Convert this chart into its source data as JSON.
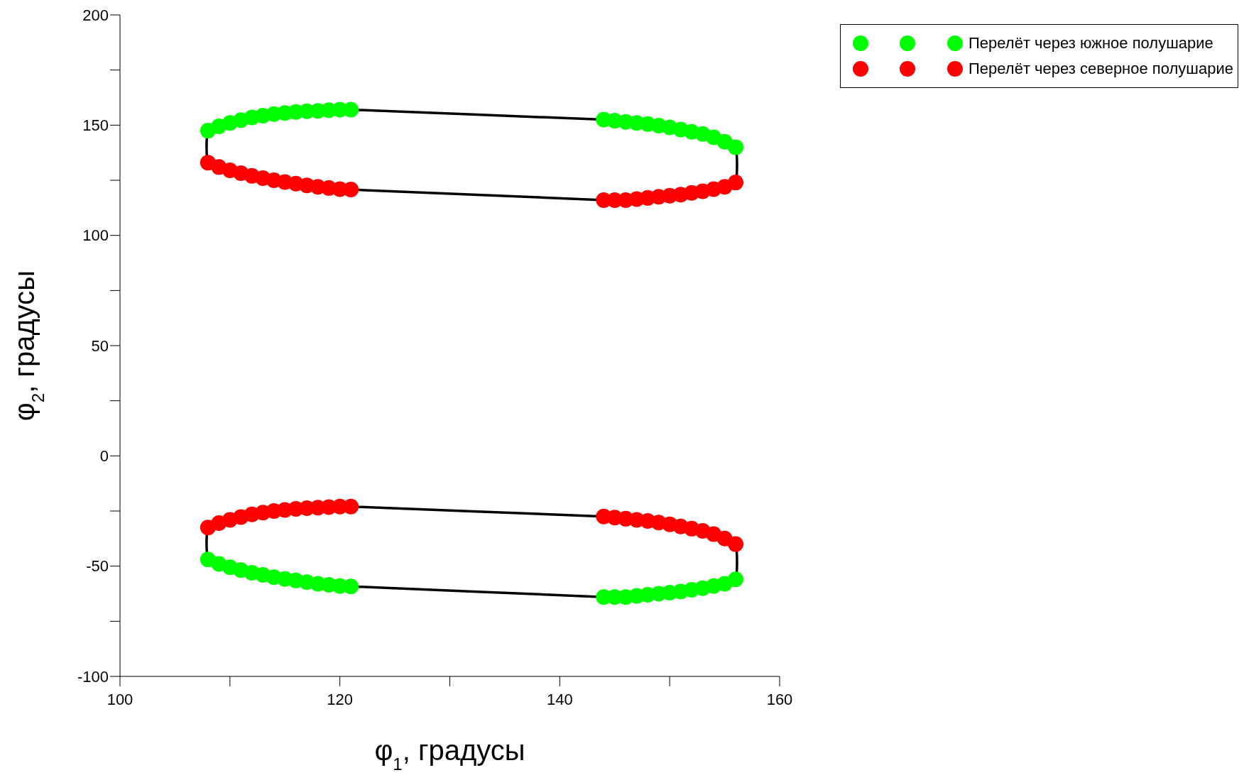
{
  "chart_data": {
    "type": "scatter",
    "xlabel": "φ$_{1}$, градусы",
    "ylabel": "φ$_{2}$, градусы",
    "xlim": [
      100,
      160
    ],
    "xticks": [
      100,
      {
        "value": 110,
        "label": null
      },
      120,
      {
        "value": 130,
        "label": null
      },
      140,
      {
        "value": 150,
        "label": null
      },
      160
    ],
    "ylim": [
      -100,
      200
    ],
    "yticks": [
      -100,
      {
        "value": -75,
        "label": null
      },
      -50,
      {
        "value": -25,
        "label": null
      },
      0,
      {
        "value": 25,
        "label": null
      },
      50,
      {
        "value": 75,
        "label": null
      },
      100,
      {
        "value": 125,
        "label": null
      },
      150,
      {
        "value": 175,
        "label": null
      },
      200
    ],
    "grid": false,
    "legend": "top right",
    "series": [
      {
        "type": "scatter",
        "name": "Перелёт через южное полушарие",
        "color": "#00ff00",
        "marker": "circle",
        "x": [
          108,
          109,
          110,
          111,
          112,
          113,
          114,
          115,
          116,
          117,
          118,
          119,
          120,
          121,
          144,
          145,
          146,
          147,
          148,
          149,
          150,
          151,
          152,
          153,
          154,
          155,
          156,
          108,
          109,
          110,
          111,
          112,
          113,
          114,
          115,
          116,
          117,
          118,
          119,
          120,
          121,
          144,
          145,
          146,
          147,
          148,
          149,
          150,
          151,
          152,
          153,
          154,
          155,
          156
        ],
        "values": [
          147.5,
          149.5,
          151,
          152.3,
          153.5,
          154.3,
          155,
          155.5,
          156,
          156.3,
          156.5,
          156.8,
          157,
          157,
          152.5,
          152,
          151.5,
          151,
          150.5,
          149.8,
          149,
          148,
          147,
          146,
          144.5,
          142.5,
          140,
          -47,
          -49,
          -50.5,
          -51.8,
          -53,
          -54,
          -55,
          -55.8,
          -56.5,
          -57.3,
          -58,
          -58.5,
          -59,
          -59.2,
          -64,
          -64,
          -64,
          -63.5,
          -63,
          -62.5,
          -62,
          -61.5,
          -60.7,
          -60,
          -59,
          -58,
          -56
        ]
      },
      {
        "type": "scatter",
        "name": "Перелёт через северное полушарие",
        "color": "#ff0000",
        "marker": "circle",
        "x": [
          108,
          109,
          110,
          111,
          112,
          113,
          114,
          115,
          116,
          117,
          118,
          119,
          120,
          121,
          144,
          145,
          146,
          147,
          148,
          149,
          150,
          151,
          152,
          153,
          154,
          155,
          156,
          108,
          109,
          110,
          111,
          112,
          113,
          114,
          115,
          116,
          117,
          118,
          119,
          120,
          121,
          144,
          145,
          146,
          147,
          148,
          149,
          150,
          151,
          152,
          153,
          154,
          155,
          156
        ],
        "values": [
          133,
          131,
          129.5,
          128.2,
          127,
          126,
          125,
          124.2,
          123.5,
          122.7,
          122,
          121.5,
          121,
          120.8,
          116,
          116,
          116,
          116.5,
          117,
          117.5,
          118,
          118.5,
          119.3,
          120,
          121,
          122,
          124,
          -32.5,
          -30.5,
          -29,
          -27.7,
          -26.5,
          -25.7,
          -25,
          -24.5,
          -24,
          -23.7,
          -23.5,
          -23.2,
          -23,
          -23,
          -27.5,
          -28,
          -28.5,
          -29,
          -29.5,
          -30.2,
          -31,
          -32,
          -33,
          -34,
          -35.5,
          -37.5,
          -40
        ]
      }
    ]
  }
}
